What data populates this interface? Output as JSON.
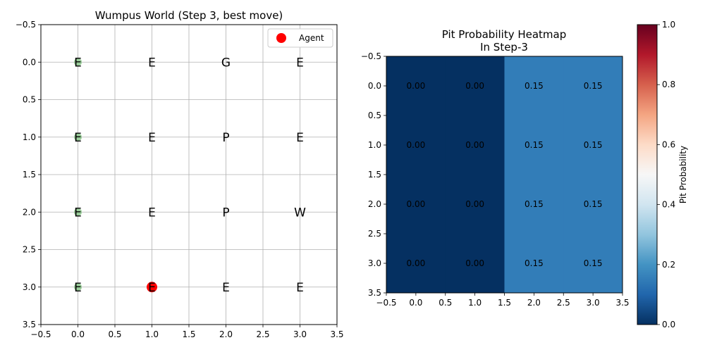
{
  "chart_data": [
    {
      "type": "scatter",
      "title": "Wumpus World (Step 3, best move)",
      "xlim": [
        -0.5,
        3.5
      ],
      "ylim": [
        3.5,
        -0.5
      ],
      "x_ticks": [
        "−0.5",
        "0.0",
        "0.5",
        "1.0",
        "1.5",
        "2.0",
        "2.5",
        "3.0",
        "3.5"
      ],
      "y_ticks": [
        "−0.5",
        "0.0",
        "0.5",
        "1.0",
        "1.5",
        "2.0",
        "2.5",
        "3.0",
        "3.5"
      ],
      "grid": true,
      "legend": {
        "placement": "top-right",
        "entries": [
          "Agent"
        ]
      },
      "cells": [
        {
          "x": 0,
          "y": 0,
          "label": "E"
        },
        {
          "x": 1,
          "y": 0,
          "label": "E"
        },
        {
          "x": 2,
          "y": 0,
          "label": "G"
        },
        {
          "x": 3,
          "y": 0,
          "label": "E"
        },
        {
          "x": 0,
          "y": 1,
          "label": "E"
        },
        {
          "x": 1,
          "y": 1,
          "label": "E"
        },
        {
          "x": 2,
          "y": 1,
          "label": "P"
        },
        {
          "x": 3,
          "y": 1,
          "label": "E"
        },
        {
          "x": 0,
          "y": 2,
          "label": "E"
        },
        {
          "x": 1,
          "y": 2,
          "label": "E"
        },
        {
          "x": 2,
          "y": 2,
          "label": "P"
        },
        {
          "x": 3,
          "y": 2,
          "label": "W"
        },
        {
          "x": 0,
          "y": 3,
          "label": "E"
        },
        {
          "x": 1,
          "y": 3,
          "label": "E"
        },
        {
          "x": 2,
          "y": 3,
          "label": "E"
        },
        {
          "x": 3,
          "y": 3,
          "label": "E"
        }
      ],
      "visited": [
        [
          0,
          0
        ],
        [
          0,
          1
        ],
        [
          0,
          2
        ],
        [
          0,
          3
        ]
      ],
      "agent": {
        "x": 1,
        "y": 3,
        "color": "#ff0000"
      },
      "visited_color": "#90c890"
    },
    {
      "type": "heatmap",
      "title_lines": [
        "Pit Probability Heatmap",
        "In Step-3"
      ],
      "xlim": [
        -0.5,
        3.5
      ],
      "ylim": [
        3.5,
        -0.5
      ],
      "x_ticks": [
        "−0.5",
        "0.0",
        "0.5",
        "1.0",
        "1.5",
        "2.0",
        "2.5",
        "3.0",
        "3.5"
      ],
      "y_ticks": [
        "−0.5",
        "0.0",
        "0.5",
        "1.0",
        "1.5",
        "2.0",
        "2.5",
        "3.0",
        "3.5"
      ],
      "values": [
        [
          0.0,
          0.0,
          0.15,
          0.15
        ],
        [
          0.0,
          0.0,
          0.15,
          0.15
        ],
        [
          0.0,
          0.0,
          0.15,
          0.15
        ],
        [
          0.0,
          0.0,
          0.15,
          0.15
        ]
      ],
      "value_labels": [
        [
          "0.00",
          "0.00",
          "0.15",
          "0.15"
        ],
        [
          "0.00",
          "0.00",
          "0.15",
          "0.15"
        ],
        [
          "0.00",
          "0.00",
          "0.15",
          "0.15"
        ],
        [
          "0.00",
          "0.00",
          "0.15",
          "0.15"
        ]
      ],
      "colorbar": {
        "label": "Pit Probability",
        "range": [
          0,
          1
        ],
        "ticks": [
          "0.0",
          "0.2",
          "0.4",
          "0.6",
          "0.8",
          "1.0"
        ],
        "colormap": "RdBu_r"
      }
    }
  ]
}
